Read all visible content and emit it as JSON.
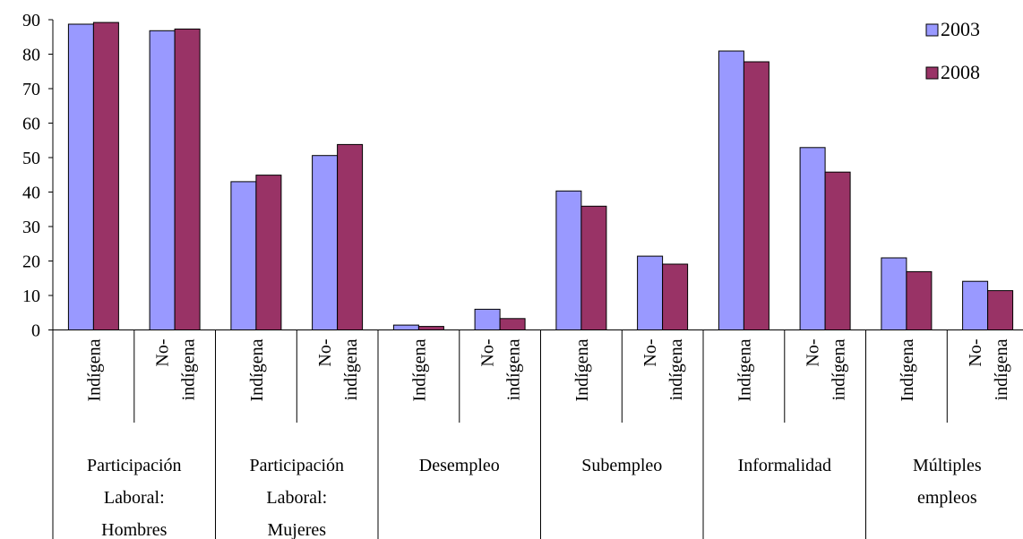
{
  "chart_data": {
    "type": "bar",
    "groups": [
      {
        "label_lines": [
          "Participación",
          "Laboral:",
          "Hombres"
        ],
        "subcategories": [
          "Indígena",
          "No-indígena"
        ]
      },
      {
        "label_lines": [
          "Participación",
          "Laboral:",
          "Mujeres"
        ],
        "subcategories": [
          "Indígena",
          "No-indígena"
        ]
      },
      {
        "label_lines": [
          "Desempleo"
        ],
        "subcategories": [
          "Indígena",
          "No-indígena"
        ]
      },
      {
        "label_lines": [
          "Subempleo"
        ],
        "subcategories": [
          "Indígena",
          "No-indígena"
        ]
      },
      {
        "label_lines": [
          "Informalidad"
        ],
        "subcategories": [
          "Indígena",
          "No-indígena"
        ]
      },
      {
        "label_lines": [
          "Múltiples",
          "empleos"
        ],
        "subcategories": [
          "Indígena",
          "No-indígena"
        ]
      }
    ],
    "subcategory_lines": {
      "Indígena": [
        "Indígena"
      ],
      "No-indígena": [
        "No-",
        "indígena"
      ]
    },
    "series": [
      {
        "name": "2003",
        "color": "#9999ff",
        "values": [
          88.7,
          86.8,
          43.0,
          50.6,
          1.4,
          6.0,
          40.3,
          21.4,
          80.9,
          52.9,
          20.9,
          14.1
        ]
      },
      {
        "name": "2008",
        "color": "#993366",
        "values": [
          89.2,
          87.3,
          44.9,
          53.8,
          1.0,
          3.3,
          35.9,
          19.1,
          77.8,
          45.8,
          16.9,
          11.4
        ]
      }
    ],
    "ylim": [
      0,
      90
    ],
    "yticks": [
      0,
      10,
      20,
      30,
      40,
      50,
      60,
      70,
      80,
      90
    ],
    "grid": false,
    "legend_position": "top-right"
  }
}
